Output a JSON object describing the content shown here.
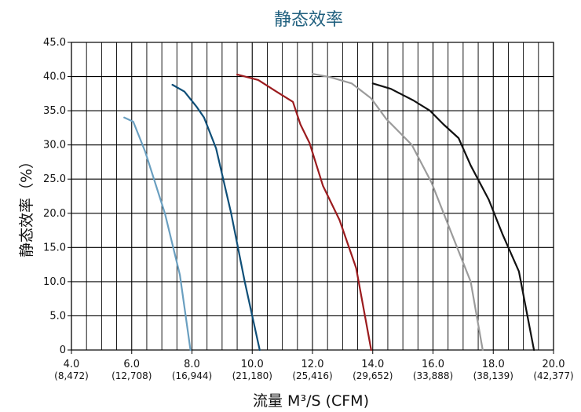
{
  "chart_data": {
    "type": "line",
    "title": "静态效率",
    "xlabel": "流量 M³/S (CFM)",
    "ylabel": "静态效率（%）",
    "xlim": [
      4.0,
      20.0
    ],
    "ylim": [
      0,
      45
    ],
    "x_ticks": [
      {
        "value": 4.0,
        "label": "4.0",
        "sub": "(8,472)"
      },
      {
        "value": 6.0,
        "label": "6.0",
        "sub": "(12,708)"
      },
      {
        "value": 8.0,
        "label": "8.0",
        "sub": "(16,944)"
      },
      {
        "value": 10.0,
        "label": "10.0",
        "sub": "(21,180)"
      },
      {
        "value": 12.0,
        "label": "12.0",
        "sub": "(25,416)"
      },
      {
        "value": 14.0,
        "label": "14.0",
        "sub": "(29,652)"
      },
      {
        "value": 16.0,
        "label": "16.0",
        "sub": "(33,888)"
      },
      {
        "value": 18.0,
        "label": "18.0",
        "sub": "(38,139)"
      },
      {
        "value": 20.0,
        "label": "20.0",
        "sub": "(42,377)"
      }
    ],
    "y_ticks": [
      {
        "value": 0,
        "label": "0"
      },
      {
        "value": 5,
        "label": "5.0"
      },
      {
        "value": 10,
        "label": "10.0"
      },
      {
        "value": 15,
        "label": "15.0"
      },
      {
        "value": 20,
        "label": "20.0"
      },
      {
        "value": 25,
        "label": "25.0"
      },
      {
        "value": 30,
        "label": "30.0"
      },
      {
        "value": 35,
        "label": "35.0"
      },
      {
        "value": 40,
        "label": "40.0"
      },
      {
        "value": 45,
        "label": "45.0"
      }
    ],
    "grid": true,
    "series": [
      {
        "color": "#6a9fc0",
        "points": [
          [
            5.75,
            34.0
          ],
          [
            6.05,
            33.4
          ],
          [
            6.45,
            29.0
          ],
          [
            7.1,
            20.0
          ],
          [
            7.6,
            11.0
          ],
          [
            7.95,
            0.0
          ]
        ]
      },
      {
        "color": "#0f4f78",
        "points": [
          [
            7.35,
            38.8
          ],
          [
            7.75,
            37.8
          ],
          [
            8.15,
            35.6
          ],
          [
            8.4,
            34.0
          ],
          [
            8.8,
            29.5
          ],
          [
            9.3,
            20.0
          ],
          [
            9.75,
            10.0
          ],
          [
            10.25,
            0.0
          ]
        ]
      },
      {
        "color": "#9b1b1e",
        "points": [
          [
            9.5,
            40.3
          ],
          [
            10.2,
            39.5
          ],
          [
            10.8,
            37.8
          ],
          [
            11.35,
            36.3
          ],
          [
            11.6,
            33.0
          ],
          [
            11.9,
            30.3
          ],
          [
            12.35,
            24.0
          ],
          [
            12.9,
            19.0
          ],
          [
            13.45,
            12.0
          ],
          [
            13.95,
            0.0
          ]
        ]
      },
      {
        "color": "#9b9b9b",
        "points": [
          [
            12.0,
            40.4
          ],
          [
            12.6,
            39.9
          ],
          [
            13.3,
            39.0
          ],
          [
            13.95,
            36.8
          ],
          [
            14.45,
            33.8
          ],
          [
            15.3,
            30.0
          ],
          [
            15.95,
            24.5
          ],
          [
            16.8,
            15.0
          ],
          [
            17.25,
            10.0
          ],
          [
            17.65,
            0.0
          ]
        ]
      },
      {
        "color": "#111111",
        "points": [
          [
            14.0,
            39.0
          ],
          [
            14.6,
            38.2
          ],
          [
            15.35,
            36.5
          ],
          [
            15.9,
            35.0
          ],
          [
            16.35,
            33.0
          ],
          [
            16.85,
            31.0
          ],
          [
            17.25,
            27.0
          ],
          [
            17.85,
            22.0
          ],
          [
            18.3,
            17.0
          ],
          [
            18.85,
            11.5
          ],
          [
            19.35,
            0.0
          ]
        ]
      }
    ]
  }
}
